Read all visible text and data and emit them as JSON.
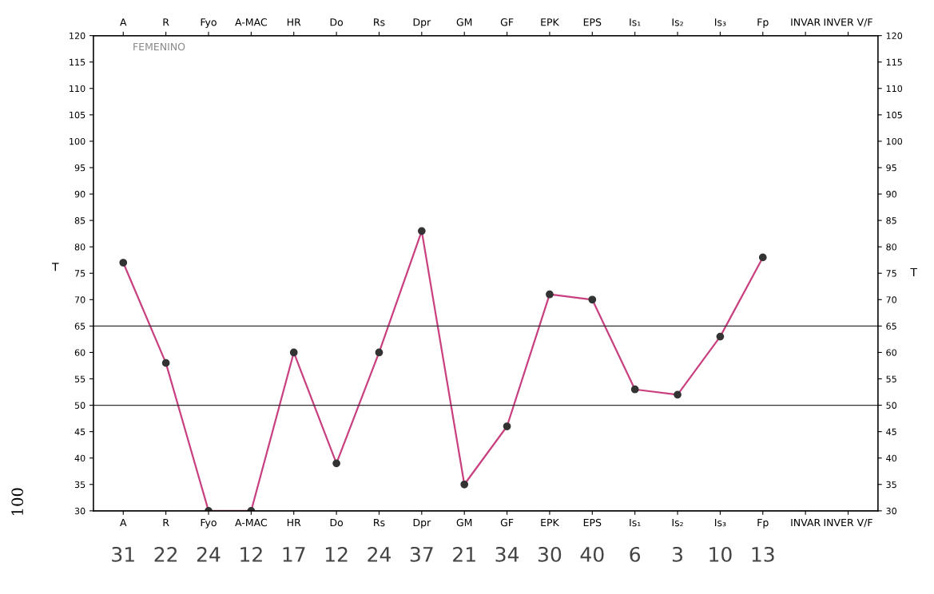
{
  "chart_data": {
    "type": "line",
    "ylabel": "T",
    "y2label": "T",
    "categories": [
      "A",
      "R",
      "Fyo",
      "A-MAC",
      "HR",
      "Do",
      "Rs",
      "Dpr",
      "GM",
      "GF",
      "EPK",
      "EPS",
      "Is₁",
      "Is₂",
      "Is₃",
      "Fp",
      "INVAR",
      "INVER V/F"
    ],
    "series": [
      {
        "color": "#c8407f",
        "values": [
          77,
          58,
          30,
          30,
          60,
          39,
          60,
          83,
          35,
          46,
          71,
          70,
          53,
          52,
          63,
          78,
          null,
          null
        ]
      }
    ],
    "ylim": [
      30,
      120
    ],
    "yticks": [
      30,
      35,
      40,
      45,
      50,
      55,
      60,
      65,
      70,
      75,
      80,
      85,
      90,
      95,
      100,
      105,
      110,
      115,
      120
    ],
    "y2lim": [
      30,
      120
    ],
    "y2ticks": [
      30,
      35,
      40,
      45,
      50,
      55,
      60,
      65,
      70,
      75,
      80,
      85,
      90,
      95,
      100,
      105,
      110,
      115,
      120
    ],
    "ref_lines": [
      {
        "axis": "y",
        "value": 65,
        "color": "#333333"
      },
      {
        "axis": "y",
        "value": 50,
        "color": "#333333"
      }
    ],
    "marker": "circle",
    "grid": false,
    "legend": false,
    "annotations": [
      "FEMENINO",
      "100",
      "31",
      "22",
      "24",
      "12",
      "17",
      "12",
      "24",
      "37",
      "21",
      "34",
      "30",
      "40",
      "6",
      "3",
      "10",
      "13"
    ]
  }
}
